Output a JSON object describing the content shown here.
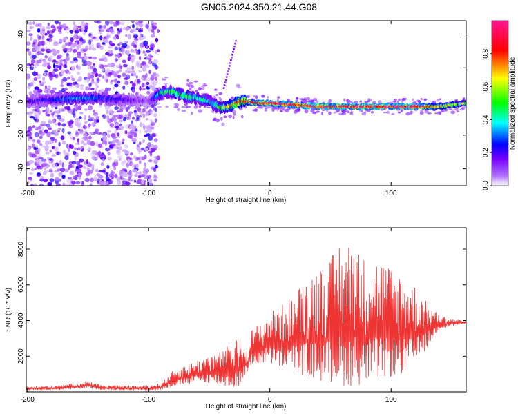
{
  "title": "GN05.2024.350.21.44.G08",
  "chart_data": [
    {
      "type": "heatmap",
      "xlabel": "Height of straight line (km)",
      "ylabel": "Frequency (Hz)",
      "xlim": [
        -201,
        162
      ],
      "ylim": [
        -50,
        48
      ],
      "x_ticks": [
        "-200",
        "-100",
        "0",
        "100"
      ],
      "x_tick_values": [
        -200,
        -100,
        0,
        100
      ],
      "y_ticks": [
        "40",
        "20",
        "0",
        "-20",
        "-40"
      ],
      "y_tick_values": [
        40,
        20,
        0,
        -20,
        -40
      ],
      "grid": false,
      "colorbar": {
        "label": "Normalized spectral amplitude",
        "range": [
          0,
          1
        ],
        "ticks": [
          "0.0",
          "0.2",
          "0.4",
          "0.6",
          "0.8"
        ],
        "tick_values": [
          0.0,
          0.2,
          0.4,
          0.6,
          0.8
        ],
        "colormap": [
          "#ffffff",
          "#7a00ff",
          "#0000ff",
          "#00ffff",
          "#00ff00",
          "#ffff00",
          "#ff0000",
          "#ff1493"
        ]
      },
      "ridge": {
        "x": [
          -200,
          -180,
          -160,
          -140,
          -120,
          -100,
          -90,
          -80,
          -70,
          -60,
          -50,
          -40,
          -30,
          -25,
          -20,
          -10,
          0,
          20,
          40,
          60,
          80,
          100,
          120,
          140,
          162
        ],
        "freq": [
          0,
          1,
          2,
          2,
          1,
          0,
          5,
          6,
          3,
          2,
          0,
          -4,
          -2,
          0,
          0,
          -1,
          -1,
          -2,
          -3,
          -3,
          -3,
          -3,
          -3,
          -3,
          -1
        ],
        "amplitude": [
          0.18,
          0.25,
          0.35,
          0.3,
          0.2,
          0.1,
          0.45,
          0.5,
          0.5,
          0.45,
          0.4,
          0.55,
          0.7,
          0.85,
          0.8,
          0.85,
          0.9,
          0.9,
          0.95,
          0.95,
          0.95,
          0.95,
          0.95,
          0.7,
          0.6
        ]
      },
      "noise_region_x": [
        -200,
        -92
      ]
    },
    {
      "type": "line",
      "xlabel": "Height of straight line (km)",
      "ylabel": "SNR (10 * v/v)",
      "xlim": [
        -201,
        162
      ],
      "ylim": [
        0,
        9200
      ],
      "x_ticks": [
        "-200",
        "-100",
        "0",
        "100"
      ],
      "x_tick_values": [
        -200,
        -100,
        0,
        100
      ],
      "y_ticks": [
        "2000",
        "4000",
        "6000",
        "8000"
      ],
      "y_tick_values": [
        2000,
        4000,
        6000,
        8000
      ],
      "grid": false,
      "color": "#ee3333",
      "series": [
        {
          "x": [
            -200,
            -180,
            -160,
            -150,
            -140,
            -120,
            -100,
            -90,
            -80,
            -70,
            -60,
            -50,
            -40,
            -30,
            -25,
            -20,
            -15,
            -10,
            -5,
            0,
            10,
            20,
            25,
            30,
            40,
            50,
            57,
            60,
            70,
            75,
            80,
            90,
            100,
            110,
            120,
            130,
            140,
            150,
            162
          ],
          "envelope": [
            300,
            350,
            500,
            650,
            400,
            350,
            350,
            500,
            1200,
            1500,
            1800,
            2100,
            2300,
            2800,
            3000,
            2500,
            3500,
            3800,
            4100,
            4500,
            4900,
            5400,
            6000,
            6500,
            7000,
            7400,
            8600,
            8000,
            8800,
            7500,
            7600,
            7500,
            7000,
            6600,
            6000,
            5000,
            4300,
            4100,
            4000
          ],
          "floor": [
            100,
            100,
            150,
            200,
            120,
            100,
            100,
            100,
            300,
            400,
            500,
            500,
            300,
            200,
            300,
            1000,
            1400,
            1500,
            1600,
            1500,
            1300,
            1200,
            1000,
            800,
            600,
            500,
            400,
            300,
            300,
            400,
            500,
            700,
            800,
            1000,
            1500,
            2500,
            3500,
            3700,
            3800
          ]
        }
      ]
    }
  ]
}
